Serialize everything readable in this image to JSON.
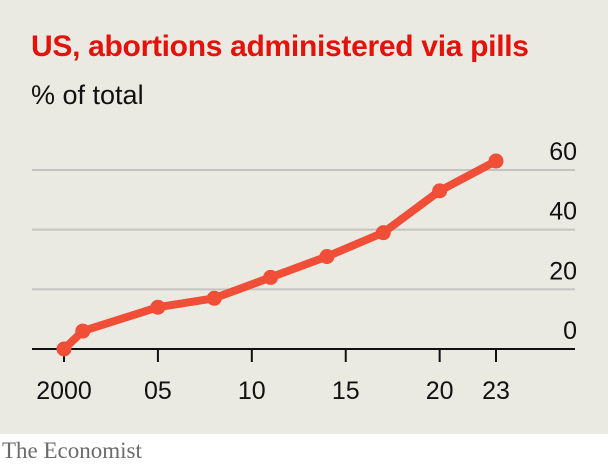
{
  "chart_data": {
    "type": "line",
    "title": "US, abortions administered via pills",
    "subtitle": "% of total",
    "xlabel": "",
    "ylabel": "",
    "x_tick_labels": [
      "2000",
      "05",
      "10",
      "15",
      "20",
      "23"
    ],
    "x_ticks": [
      2000,
      2005,
      2010,
      2015,
      2020,
      2023
    ],
    "y_ticks": [
      0,
      20,
      40,
      60
    ],
    "xlim": [
      2000,
      2023
    ],
    "ylim": [
      0,
      60
    ],
    "grid": true,
    "y_axis_side": "right",
    "series": [
      {
        "color": "#f04e37",
        "x": [
          2000,
          2001,
          2005,
          2008,
          2011,
          2014,
          2017,
          2020,
          2023
        ],
        "y": [
          0,
          6,
          14,
          17,
          24,
          31,
          39,
          53,
          63
        ]
      }
    ]
  },
  "footer": {
    "source": "The Economist"
  }
}
